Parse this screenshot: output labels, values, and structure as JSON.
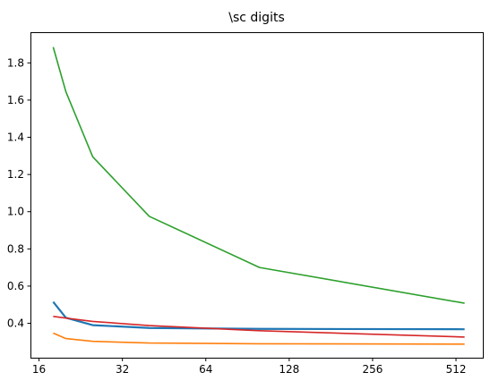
{
  "chart_data": {
    "type": "line",
    "title": "\\sc digits",
    "xlabel": "",
    "ylabel": "",
    "xscale": "log2",
    "xlim": [
      14.9,
      640
    ],
    "ylim": [
      0.215,
      1.965
    ],
    "xticks": [
      16,
      32,
      64,
      128,
      256,
      512
    ],
    "xtick_labels": [
      "16",
      "32",
      "64",
      "128",
      "256",
      "512"
    ],
    "yticks": [
      0.4,
      0.6,
      0.8,
      1.0,
      1.2,
      1.4,
      1.6,
      1.8
    ],
    "ytick_labels": [
      "0.4",
      "0.6",
      "0.8",
      "1.0",
      "1.2",
      "1.4",
      "1.6",
      "1.8"
    ],
    "grid": false,
    "series": [
      {
        "color": "#1f77b4",
        "x": [
          18,
          20,
          25,
          40,
          100,
          550
        ],
        "y": [
          0.515,
          0.43,
          0.39,
          0.375,
          0.37,
          0.368
        ]
      },
      {
        "color": "#ff7f0e",
        "x": [
          18,
          20,
          25,
          40,
          100,
          550
        ],
        "y": [
          0.347,
          0.318,
          0.303,
          0.294,
          0.29,
          0.288
        ]
      },
      {
        "color": "#2ca02c",
        "x": [
          18,
          20,
          25,
          40,
          100,
          550
        ],
        "y": [
          1.885,
          1.645,
          1.295,
          0.975,
          0.7,
          0.508
        ]
      },
      {
        "color": "#d62728",
        "x": [
          18,
          20,
          25,
          40,
          100,
          550
        ],
        "y": [
          0.437,
          0.428,
          0.41,
          0.388,
          0.36,
          0.326
        ]
      }
    ]
  }
}
